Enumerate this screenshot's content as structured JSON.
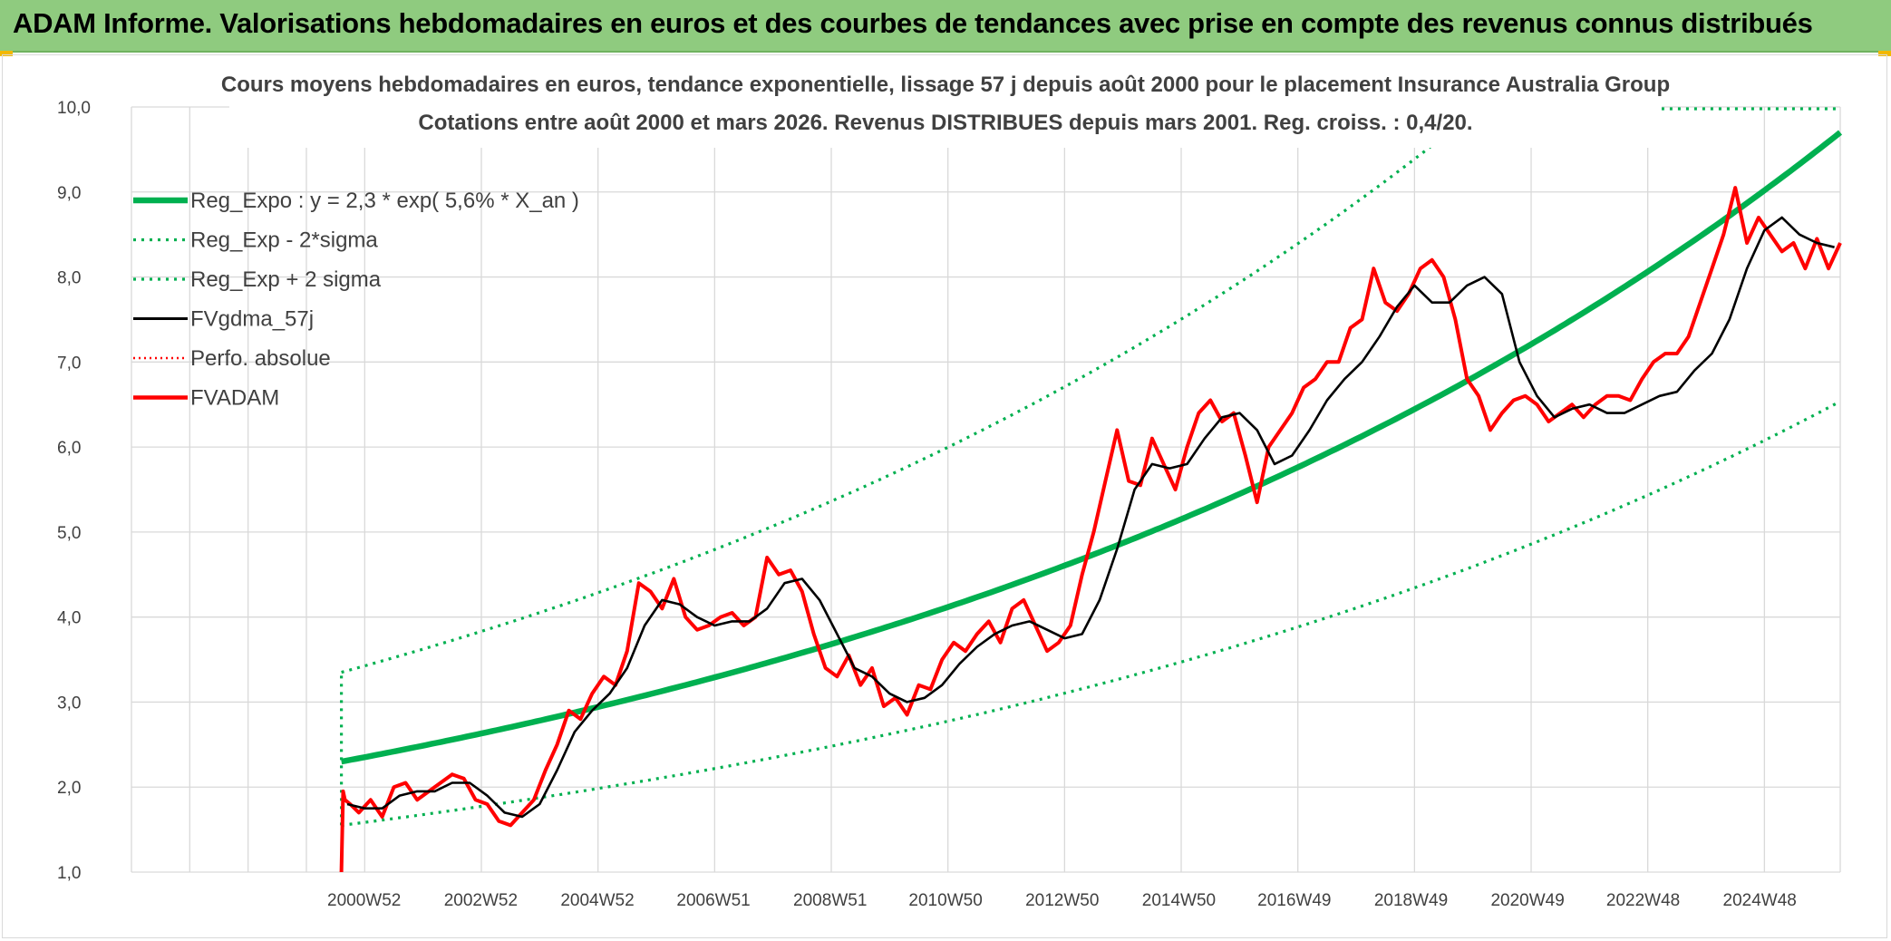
{
  "banner": {
    "title": "ADAM Informe. Valorisations hebdomadaires en euros et des courbes de tendances avec prise en compte des revenus connus distribués"
  },
  "colors": {
    "banner_bg": "#8fcb7f",
    "regression": "#00b050",
    "fvadam": "#ff0000",
    "fvgdma": "#000000",
    "grid": "#d9d9d9"
  },
  "chart_data": {
    "type": "line",
    "title_line1": "Cours moyens hebdomadaires en euros, tendance exponentielle, lissage 57 j depuis août 2000 pour le placement Insurance Australia Group",
    "title_line2": "Cotations entre août 2000 et mars 2026. Revenus DISTRIBUES depuis mars 2001. Reg. croiss. : 0,4/20.",
    "xlabel": "",
    "ylabel": "",
    "x_range": [
      1997.0,
      2026.3
    ],
    "ylim": [
      1.0,
      10.0
    ],
    "y_ticks": [
      "1,0",
      "2,0",
      "3,0",
      "4,0",
      "5,0",
      "6,0",
      "7,0",
      "8,0",
      "9,0",
      "10,0"
    ],
    "x_tick_labels": [
      "2000W52",
      "2002W52",
      "2004W52",
      "2006W51",
      "2008W51",
      "2010W50",
      "2012W50",
      "2014W50",
      "2016W49",
      "2018W49",
      "2020W49",
      "2022W48",
      "2024W48"
    ],
    "x_tick_years": [
      2000.99,
      2002.99,
      2004.99,
      2006.98,
      2008.98,
      2010.96,
      2012.96,
      2014.96,
      2016.94,
      2018.94,
      2020.94,
      2022.92,
      2024.92
    ],
    "x_gridlines": [
      1997,
      1998,
      1999,
      2000,
      2001,
      2003,
      2005,
      2007,
      2009,
      2011,
      2013,
      2015,
      2017,
      2019,
      2021,
      2023,
      2025,
      2026.3
    ],
    "legend": [
      {
        "label": "Reg_Expo : y = 2,3 * exp( 5,6% *  X_an )",
        "style": "thick-green"
      },
      {
        "label": "Reg_Exp - 2*sigma",
        "style": "dotted-green"
      },
      {
        "label": "Reg_Exp + 2 sigma",
        "style": "dotted-green"
      },
      {
        "label": "FVgdma_57j",
        "style": "solid-black"
      },
      {
        "label": "Perfo. absolue",
        "style": "dotted-red"
      },
      {
        "label": "FVADAM",
        "style": "thick-red"
      }
    ],
    "regression": {
      "a": 2.3,
      "rate": 0.056,
      "x0": 2000.6,
      "start": 2000.6,
      "end": 2026.3
    },
    "band_lower": {
      "a": 1.55,
      "rate": 0.056,
      "x0": 2000.6,
      "start": 2000.6,
      "end": 2026.3
    },
    "band_upper": {
      "a": 3.35,
      "rate": 0.056,
      "x0": 2000.6,
      "start": 2000.6,
      "end": 2026.3
    },
    "series": [
      {
        "name": "FVADAM",
        "x": [
          2000.6,
          2000.63,
          2000.66,
          2000.75,
          2000.9,
          2001.1,
          2001.3,
          2001.5,
          2001.7,
          2001.9,
          2002.1,
          2002.3,
          2002.5,
          2002.7,
          2002.9,
          2003.1,
          2003.3,
          2003.5,
          2003.7,
          2003.9,
          2004.1,
          2004.3,
          2004.5,
          2004.7,
          2004.9,
          2005.1,
          2005.3,
          2005.5,
          2005.7,
          2005.9,
          2006.1,
          2006.3,
          2006.5,
          2006.7,
          2006.9,
          2007.1,
          2007.3,
          2007.5,
          2007.7,
          2007.9,
          2008.1,
          2008.3,
          2008.5,
          2008.7,
          2008.9,
          2009.1,
          2009.3,
          2009.5,
          2009.7,
          2009.9,
          2010.1,
          2010.3,
          2010.5,
          2010.7,
          2010.9,
          2011.1,
          2011.3,
          2011.5,
          2011.7,
          2011.9,
          2012.1,
          2012.3,
          2012.5,
          2012.7,
          2012.9,
          2013.1,
          2013.3,
          2013.5,
          2013.7,
          2013.9,
          2014.1,
          2014.3,
          2014.5,
          2014.7,
          2014.9,
          2015.1,
          2015.3,
          2015.5,
          2015.7,
          2015.9,
          2016.1,
          2016.3,
          2016.5,
          2016.7,
          2016.9,
          2017.1,
          2017.3,
          2017.5,
          2017.7,
          2017.9,
          2018.1,
          2018.3,
          2018.5,
          2018.7,
          2018.9,
          2019.1,
          2019.3,
          2019.5,
          2019.7,
          2019.9,
          2020.1,
          2020.3,
          2020.5,
          2020.7,
          2020.9,
          2021.1,
          2021.3,
          2021.5,
          2021.7,
          2021.9,
          2022.1,
          2022.3,
          2022.5,
          2022.7,
          2022.9,
          2023.1,
          2023.3,
          2023.5,
          2023.7,
          2023.9,
          2024.1,
          2024.3,
          2024.5,
          2024.7,
          2024.9,
          2025.1,
          2025.3,
          2025.5,
          2025.7,
          2025.9,
          2026.1,
          2026.3
        ],
        "values": [
          1.0,
          1.95,
          1.85,
          1.8,
          1.7,
          1.85,
          1.65,
          2.0,
          2.05,
          1.85,
          1.95,
          2.05,
          2.15,
          2.1,
          1.85,
          1.8,
          1.6,
          1.55,
          1.7,
          1.85,
          2.2,
          2.5,
          2.9,
          2.8,
          3.1,
          3.3,
          3.2,
          3.6,
          4.4,
          4.3,
          4.1,
          4.45,
          4.0,
          3.85,
          3.9,
          4.0,
          4.05,
          3.9,
          4.0,
          4.7,
          4.5,
          4.55,
          4.3,
          3.8,
          3.4,
          3.3,
          3.55,
          3.2,
          3.4,
          2.95,
          3.05,
          2.85,
          3.2,
          3.15,
          3.5,
          3.7,
          3.6,
          3.8,
          3.95,
          3.7,
          4.1,
          4.2,
          3.9,
          3.6,
          3.7,
          3.9,
          4.5,
          5.0,
          5.6,
          6.2,
          5.6,
          5.55,
          6.1,
          5.8,
          5.5,
          6.0,
          6.4,
          6.55,
          6.3,
          6.4,
          5.9,
          5.35,
          6.0,
          6.2,
          6.4,
          6.7,
          6.8,
          7.0,
          7.0,
          7.4,
          7.5,
          8.1,
          7.7,
          7.6,
          7.8,
          8.1,
          8.2,
          8.0,
          7.5,
          6.8,
          6.6,
          6.2,
          6.4,
          6.55,
          6.6,
          6.5,
          6.3,
          6.4,
          6.5,
          6.35,
          6.5,
          6.6,
          6.6,
          6.55,
          6.8,
          7.0,
          7.1,
          7.1,
          7.3,
          7.7,
          8.1,
          8.5,
          9.05,
          8.4,
          8.7,
          8.5,
          8.3,
          8.4,
          8.1,
          8.45,
          8.1,
          8.4
        ]
      },
      {
        "name": "FVgdma_57j",
        "x": [
          2000.7,
          2001.0,
          2001.3,
          2001.6,
          2001.9,
          2002.2,
          2002.5,
          2002.8,
          2003.1,
          2003.4,
          2003.7,
          2004.0,
          2004.3,
          2004.6,
          2004.9,
          2005.2,
          2005.5,
          2005.8,
          2006.1,
          2006.4,
          2006.7,
          2007.0,
          2007.3,
          2007.6,
          2007.9,
          2008.2,
          2008.5,
          2008.8,
          2009.1,
          2009.4,
          2009.7,
          2010.0,
          2010.3,
          2010.6,
          2010.9,
          2011.2,
          2011.5,
          2011.8,
          2012.1,
          2012.4,
          2012.7,
          2013.0,
          2013.3,
          2013.6,
          2013.9,
          2014.2,
          2014.5,
          2014.8,
          2015.1,
          2015.4,
          2015.7,
          2016.0,
          2016.3,
          2016.6,
          2016.9,
          2017.2,
          2017.5,
          2017.8,
          2018.1,
          2018.4,
          2018.7,
          2019.0,
          2019.3,
          2019.6,
          2019.9,
          2020.2,
          2020.5,
          2020.8,
          2021.1,
          2021.4,
          2021.7,
          2022.0,
          2022.3,
          2022.6,
          2022.9,
          2023.2,
          2023.5,
          2023.8,
          2024.1,
          2024.4,
          2024.7,
          2025.0,
          2025.3,
          2025.6,
          2025.9,
          2026.2
        ],
        "values": [
          1.8,
          1.75,
          1.75,
          1.9,
          1.95,
          1.95,
          2.05,
          2.05,
          1.9,
          1.7,
          1.65,
          1.8,
          2.2,
          2.65,
          2.9,
          3.1,
          3.4,
          3.9,
          4.2,
          4.15,
          4.0,
          3.9,
          3.95,
          3.95,
          4.1,
          4.4,
          4.45,
          4.2,
          3.8,
          3.4,
          3.3,
          3.1,
          3.0,
          3.05,
          3.2,
          3.45,
          3.65,
          3.8,
          3.9,
          3.95,
          3.85,
          3.75,
          3.8,
          4.2,
          4.8,
          5.5,
          5.8,
          5.75,
          5.8,
          6.1,
          6.35,
          6.4,
          6.2,
          5.8,
          5.9,
          6.2,
          6.55,
          6.8,
          7.0,
          7.3,
          7.65,
          7.9,
          7.7,
          7.7,
          7.9,
          8.0,
          7.8,
          7.0,
          6.6,
          6.35,
          6.45,
          6.5,
          6.4,
          6.4,
          6.5,
          6.6,
          6.65,
          6.9,
          7.1,
          7.5,
          8.1,
          8.55,
          8.7,
          8.5,
          8.4,
          8.35
        ]
      }
    ]
  }
}
